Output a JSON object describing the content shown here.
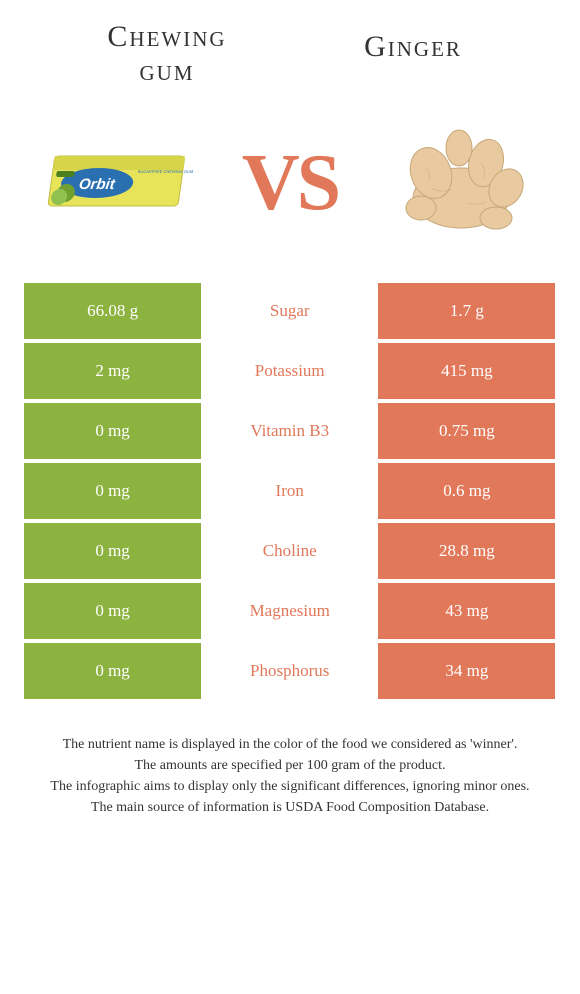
{
  "titles": {
    "left_line1": "Chewing",
    "left_line2": "gum",
    "right": "Ginger"
  },
  "vs_text": "VS",
  "colors": {
    "left_bar": "#8cb33f",
    "right_bar": "#e1785a",
    "winner_left": "#8cb33f",
    "winner_right": "#e1785a"
  },
  "nutrients": [
    {
      "name": "Sugar",
      "left": "66.08 g",
      "right": "1.7 g",
      "winner": "right"
    },
    {
      "name": "Potassium",
      "left": "2 mg",
      "right": "415 mg",
      "winner": "right"
    },
    {
      "name": "Vitamin B3",
      "left": "0 mg",
      "right": "0.75 mg",
      "winner": "right"
    },
    {
      "name": "Iron",
      "left": "0 mg",
      "right": "0.6 mg",
      "winner": "right"
    },
    {
      "name": "Choline",
      "left": "0 mg",
      "right": "28.8 mg",
      "winner": "right"
    },
    {
      "name": "Magnesium",
      "left": "0 mg",
      "right": "43 mg",
      "winner": "right"
    },
    {
      "name": "Phosphorus",
      "left": "0 mg",
      "right": "34 mg",
      "winner": "right"
    }
  ],
  "footer": {
    "line1": "The nutrient name is displayed in the color of the food we considered as 'winner'.",
    "line2": "The amounts are specified per 100 gram of the product.",
    "line3": "The infographic aims to display only the significant differences, ignoring minor ones.",
    "line4": "The main source of information is USDA Food Composition Database."
  }
}
